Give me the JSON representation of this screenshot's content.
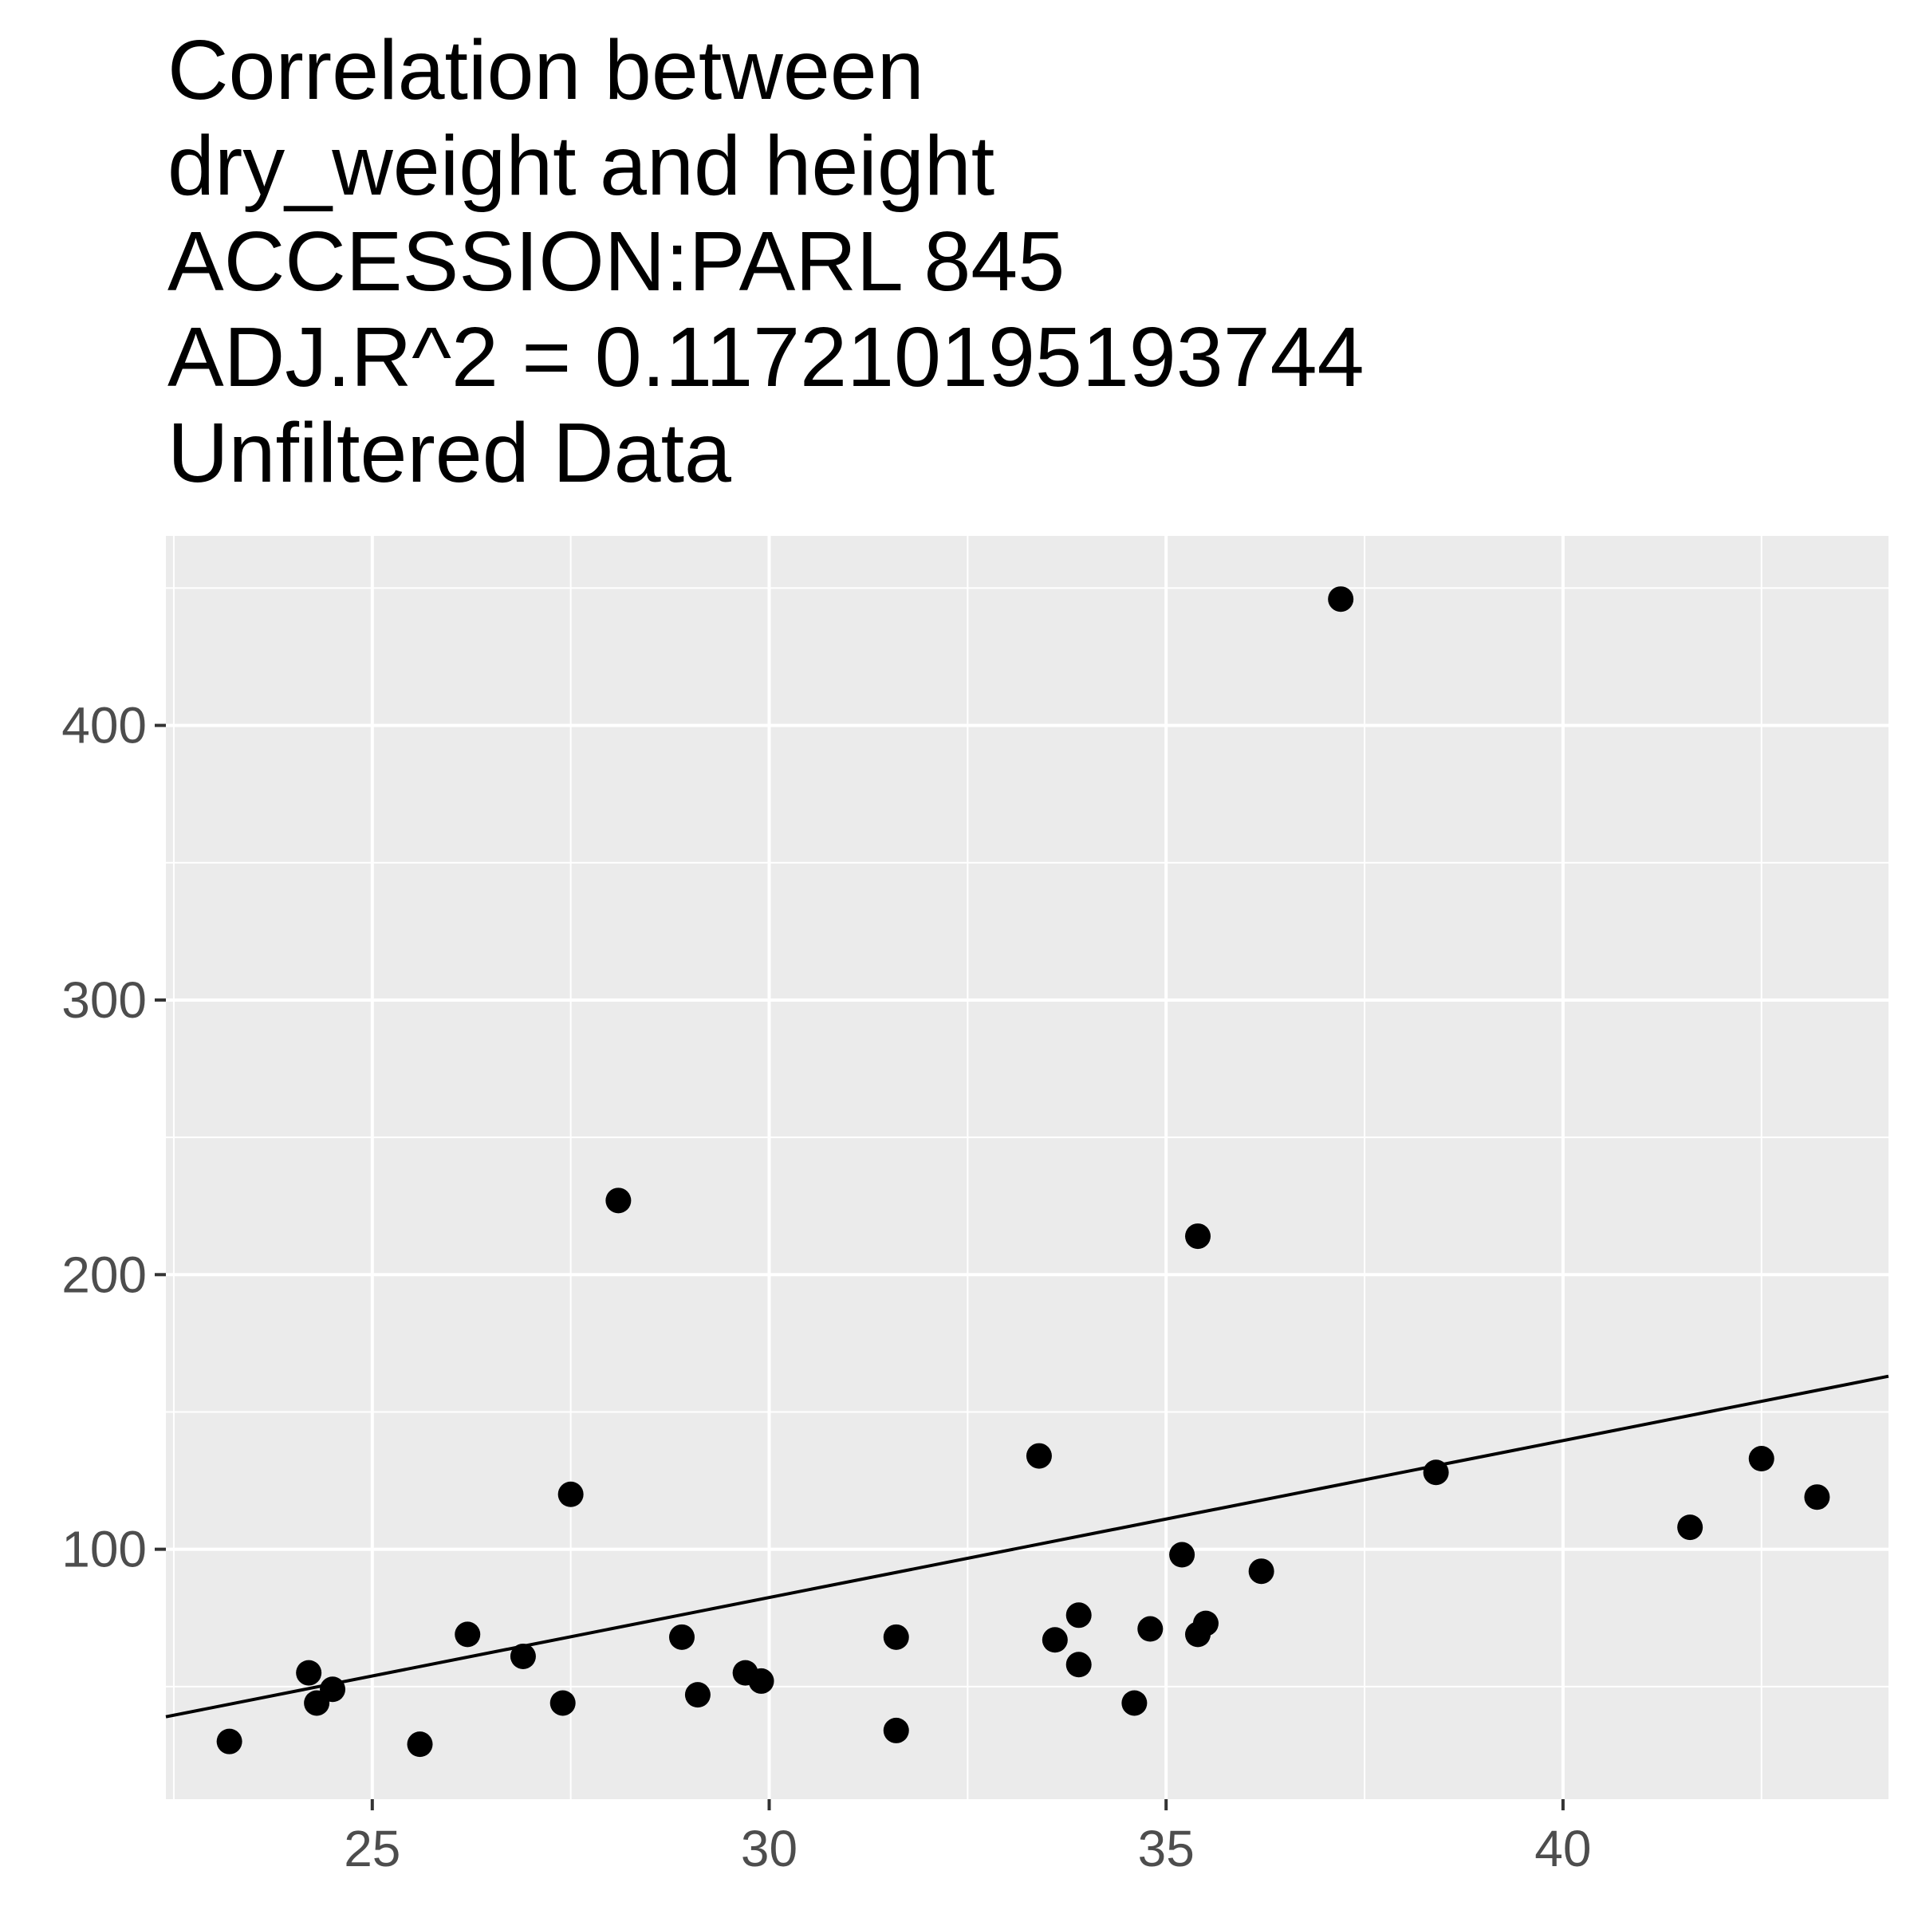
{
  "title_lines": [
    "Correlation between",
    "dry_weight and height",
    "ACCESSION:PARL 845",
    "ADJ.R^2 = 0.117210195193744",
    "Unfiltered Data"
  ],
  "chart_data": {
    "type": "scatter",
    "title": "Correlation between dry_weight and height ACCESSION:PARL 845 ADJ.R^2 = 0.117210195193744 Unfiltered Data",
    "xlabel": "",
    "ylabel": "",
    "xlim": [
      22.4,
      44.1
    ],
    "ylim": [
      9,
      469
    ],
    "x_ticks": [
      25,
      30,
      35,
      40
    ],
    "x_tick_labels": [
      "25",
      "30",
      "35",
      "40"
    ],
    "y_ticks": [
      100,
      200,
      300,
      400
    ],
    "y_tick_labels": [
      "100",
      "200",
      "300",
      "400"
    ],
    "grid": true,
    "background": "#ebebeb",
    "grid_color": "#ffffff",
    "point_color": "#000000",
    "series": [
      {
        "points": [
          {
            "x": 23.2,
            "y": 30
          },
          {
            "x": 24.2,
            "y": 55
          },
          {
            "x": 24.3,
            "y": 44
          },
          {
            "x": 24.5,
            "y": 49
          },
          {
            "x": 25.6,
            "y": 29
          },
          {
            "x": 26.2,
            "y": 69
          },
          {
            "x": 26.9,
            "y": 61
          },
          {
            "x": 27.4,
            "y": 44
          },
          {
            "x": 27.5,
            "y": 120
          },
          {
            "x": 28.1,
            "y": 227
          },
          {
            "x": 28.9,
            "y": 68
          },
          {
            "x": 29.1,
            "y": 47
          },
          {
            "x": 29.7,
            "y": 55
          },
          {
            "x": 29.9,
            "y": 52
          },
          {
            "x": 31.6,
            "y": 68
          },
          {
            "x": 31.6,
            "y": 34
          },
          {
            "x": 33.4,
            "y": 134
          },
          {
            "x": 33.6,
            "y": 67
          },
          {
            "x": 33.9,
            "y": 76
          },
          {
            "x": 33.9,
            "y": 58
          },
          {
            "x": 34.6,
            "y": 44
          },
          {
            "x": 34.8,
            "y": 71
          },
          {
            "x": 35.2,
            "y": 98
          },
          {
            "x": 35.4,
            "y": 214
          },
          {
            "x": 35.4,
            "y": 69
          },
          {
            "x": 35.5,
            "y": 73
          },
          {
            "x": 36.2,
            "y": 92
          },
          {
            "x": 37.2,
            "y": 446
          },
          {
            "x": 38.4,
            "y": 128
          },
          {
            "x": 41.6,
            "y": 108
          },
          {
            "x": 42.5,
            "y": 133
          },
          {
            "x": 43.2,
            "y": 119
          }
        ]
      }
    ],
    "regression_line": {
      "x": [
        22.4,
        44.1
      ],
      "y": [
        39,
        163
      ]
    }
  }
}
